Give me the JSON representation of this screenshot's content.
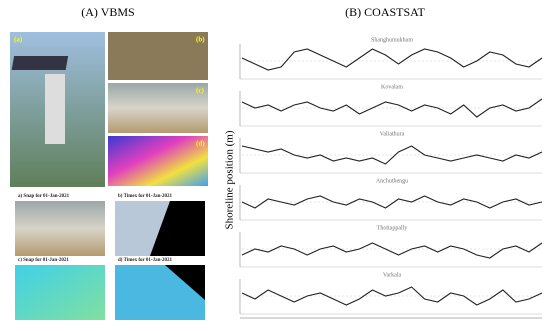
{
  "panel_a": {
    "title": "(A) VBMS",
    "photo_labels": [
      "(a)",
      "(b)",
      "(c)",
      "(d)"
    ],
    "captions": [
      "a) Snap for 01-Jan-2021",
      "b) Timex for 01-Jan-2021",
      "c) Snap for 01-Jan-2021",
      "d) Timex for 01-Jan-2021"
    ]
  },
  "panel_b": {
    "title": "(B) COASTSAT",
    "y_label": "Shoreline position (m)"
  },
  "chart_data": [
    {
      "type": "line",
      "title": "Shanghumukham",
      "ylim": [
        0,
        10
      ],
      "values": [
        6,
        4,
        2,
        3,
        8,
        9,
        7,
        5,
        3,
        6,
        9,
        7,
        4,
        7,
        9,
        8,
        6,
        3,
        5,
        8,
        7,
        4,
        3,
        6
      ]
    },
    {
      "type": "line",
      "title": "Kovalam",
      "ylim": [
        0,
        10
      ],
      "values": [
        7,
        5,
        6,
        4,
        6,
        7,
        5,
        4,
        6,
        3,
        5,
        7,
        6,
        4,
        6,
        5,
        3,
        6,
        2,
        5,
        6,
        4,
        5,
        8
      ]
    },
    {
      "type": "line",
      "title": "Valiathura",
      "ylim": [
        0,
        10
      ],
      "values": [
        8,
        7,
        6,
        7,
        5,
        4,
        5,
        3,
        4,
        3,
        4,
        2,
        6,
        8,
        5,
        4,
        3,
        4,
        5,
        4,
        3,
        5,
        4,
        6
      ]
    },
    {
      "type": "line",
      "title": "Anchuthengu",
      "ylim": [
        0,
        10
      ],
      "values": [
        5,
        3,
        6,
        5,
        4,
        6,
        7,
        5,
        4,
        6,
        5,
        3,
        6,
        5,
        7,
        5,
        4,
        6,
        5,
        3,
        5,
        6,
        4,
        5
      ]
    },
    {
      "type": "line",
      "title": "Thottappally",
      "ylim": [
        0,
        10
      ],
      "values": [
        3,
        5,
        4,
        6,
        5,
        3,
        5,
        6,
        4,
        5,
        7,
        5,
        3,
        5,
        6,
        4,
        6,
        5,
        3,
        2,
        5,
        6,
        4,
        7
      ]
    },
    {
      "type": "line",
      "title": "Varkala",
      "ylim": [
        0,
        10
      ],
      "values": [
        6,
        4,
        7,
        5,
        3,
        5,
        6,
        4,
        2,
        4,
        7,
        5,
        6,
        8,
        4,
        3,
        6,
        5,
        2,
        4,
        7,
        3,
        4,
        6
      ]
    }
  ]
}
